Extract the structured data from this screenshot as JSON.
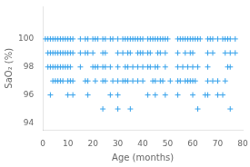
{
  "chart_data": {
    "type": "scatter",
    "xlabel": "Age (months)",
    "ylabel": "SaO₂ (%)",
    "marker": "cross",
    "grid": false,
    "xlim": [
      0,
      80
    ],
    "ylim": [
      93.5,
      102.3
    ],
    "xticks": [
      0,
      10,
      20,
      30,
      40,
      50,
      60,
      70,
      80
    ],
    "yticks": [
      94,
      {
        "value": 95,
        "label": ""
      },
      96,
      {
        "value": 97,
        "label": ""
      },
      98,
      {
        "value": 99,
        "label": ""
      },
      100,
      {
        "value": 101,
        "label": ""
      },
      {
        "value": 102,
        "label": ""
      }
    ],
    "x": [
      1,
      2,
      2,
      2,
      3,
      3,
      3,
      3,
      4,
      4,
      4,
      4,
      5,
      5,
      5,
      5,
      6,
      6,
      6,
      6,
      7,
      7,
      7,
      7,
      8,
      8,
      8,
      8,
      9,
      9,
      9,
      10,
      10,
      10,
      10,
      10,
      11,
      11,
      11,
      11,
      12,
      12,
      12,
      12,
      15,
      15,
      15,
      17,
      17,
      17,
      18,
      18,
      18,
      18,
      20,
      20,
      20,
      21,
      21,
      21,
      22,
      22,
      24,
      24,
      24,
      24,
      24,
      25,
      25,
      25,
      25,
      27,
      27,
      27,
      28,
      28,
      30,
      30,
      30,
      30,
      30,
      30,
      32,
      32,
      32,
      33,
      33,
      33,
      34,
      34,
      34,
      34,
      35,
      35,
      35,
      36,
      36,
      36,
      37,
      38,
      38,
      38,
      38,
      39,
      39,
      40,
      40,
      40,
      40,
      42,
      42,
      42,
      42,
      43,
      43,
      43,
      44,
      44,
      45,
      45,
      45,
      45,
      46,
      46,
      46,
      47,
      47,
      47,
      48,
      48,
      49,
      49,
      49,
      49,
      50,
      51,
      54,
      54,
      54,
      54,
      54,
      55,
      55,
      56,
      56,
      57,
      57,
      57,
      58,
      58,
      58,
      59,
      59,
      59,
      60,
      60,
      60,
      60,
      60,
      61,
      61,
      62,
      62,
      62,
      63,
      65,
      66,
      66,
      66,
      66,
      66,
      67,
      68,
      68,
      68,
      70,
      70,
      70,
      72,
      72,
      73,
      73,
      73,
      74,
      74,
      75,
      75,
      75,
      75,
      77,
      77
    ],
    "values": [
      100,
      100,
      99,
      98,
      100,
      99,
      98,
      96,
      100,
      99,
      98,
      97,
      100,
      99,
      98,
      97,
      100,
      99,
      98,
      97,
      100,
      99,
      98,
      97,
      100,
      99,
      98,
      97,
      100,
      99,
      98,
      100,
      99,
      98,
      97,
      96,
      100,
      99,
      98,
      97,
      100,
      99,
      97,
      96,
      100,
      99,
      98,
      100,
      99,
      97,
      100,
      99,
      97,
      96,
      100,
      99,
      98,
      100,
      98,
      97,
      100,
      98,
      100,
      99,
      98,
      97,
      95,
      100,
      99,
      98,
      97,
      100,
      98,
      96,
      100,
      97,
      100,
      99,
      98,
      97,
      96,
      95,
      100,
      99,
      97,
      100,
      98,
      97,
      100,
      99,
      98,
      97,
      100,
      99,
      95,
      100,
      98,
      97,
      100,
      100,
      99,
      98,
      97,
      100,
      99,
      100,
      99,
      98,
      97,
      100,
      99,
      98,
      96,
      100,
      99,
      98,
      100,
      97,
      100,
      98,
      97,
      96,
      100,
      99,
      98,
      100,
      99,
      97,
      100,
      97,
      100,
      99,
      98,
      96,
      100,
      97,
      100,
      99,
      98,
      97,
      96,
      100,
      97,
      100,
      98,
      100,
      99,
      97,
      100,
      98,
      97,
      100,
      99,
      97,
      100,
      99,
      98,
      97,
      96,
      100,
      97,
      100,
      98,
      95,
      100,
      96,
      100,
      99,
      98,
      97,
      96,
      100,
      100,
      99,
      97,
      100,
      97,
      96,
      100,
      96,
      100,
      99,
      97,
      100,
      98,
      100,
      99,
      98,
      95,
      100,
      99
    ]
  }
}
